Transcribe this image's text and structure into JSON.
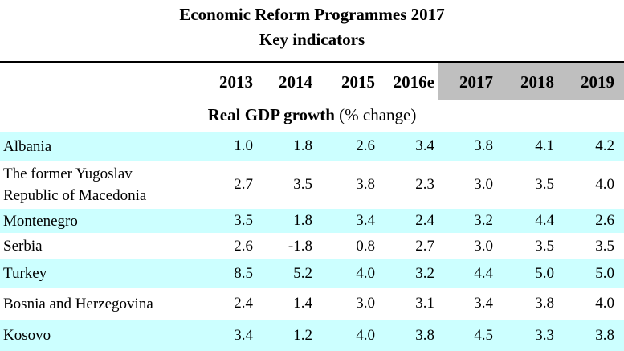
{
  "title": "Economic Reform Programmes 2017",
  "subtitle": "Key indicators",
  "years": [
    "2013",
    "2014",
    "2015",
    "2016e",
    "2017",
    "2018",
    "2019"
  ],
  "section": {
    "bold": "Real GDP growth",
    "rest": " (% change)"
  },
  "rows": [
    {
      "label": [
        "Albania"
      ],
      "values": [
        "1.0",
        "1.8",
        "2.6",
        "3.4",
        "3.8",
        "4.1",
        "4.2"
      ]
    },
    {
      "label": [
        "The former Yugoslav",
        "Republic of Macedonia"
      ],
      "values": [
        "2.7",
        "3.5",
        "3.8",
        "2.3",
        "3.0",
        "3.5",
        "4.0"
      ]
    },
    {
      "label": [
        "Montenegro"
      ],
      "values": [
        "3.5",
        "1.8",
        "3.4",
        "2.4",
        "3.2",
        "4.4",
        "2.6"
      ]
    },
    {
      "label": [
        "Serbia"
      ],
      "values": [
        "2.6",
        "-1.8",
        "0.8",
        "2.7",
        "3.0",
        "3.5",
        "3.5"
      ]
    },
    {
      "label": [
        "Turkey"
      ],
      "values": [
        "8.5",
        "5.2",
        "4.0",
        "3.2",
        "4.4",
        "5.0",
        "5.0"
      ]
    },
    {
      "label": [
        "Bosnia and Herzegovina"
      ],
      "values": [
        "2.4",
        "1.4",
        "3.0",
        "3.1",
        "3.4",
        "3.8",
        "4.0"
      ]
    },
    {
      "label": [
        "Kosovo"
      ],
      "values": [
        "3.4",
        "1.2",
        "4.0",
        "3.8",
        "4.5",
        "3.3",
        "3.8"
      ]
    }
  ],
  "colors": {
    "row_alt": "#ccffff",
    "forecast_header": "#bfbfbf"
  }
}
